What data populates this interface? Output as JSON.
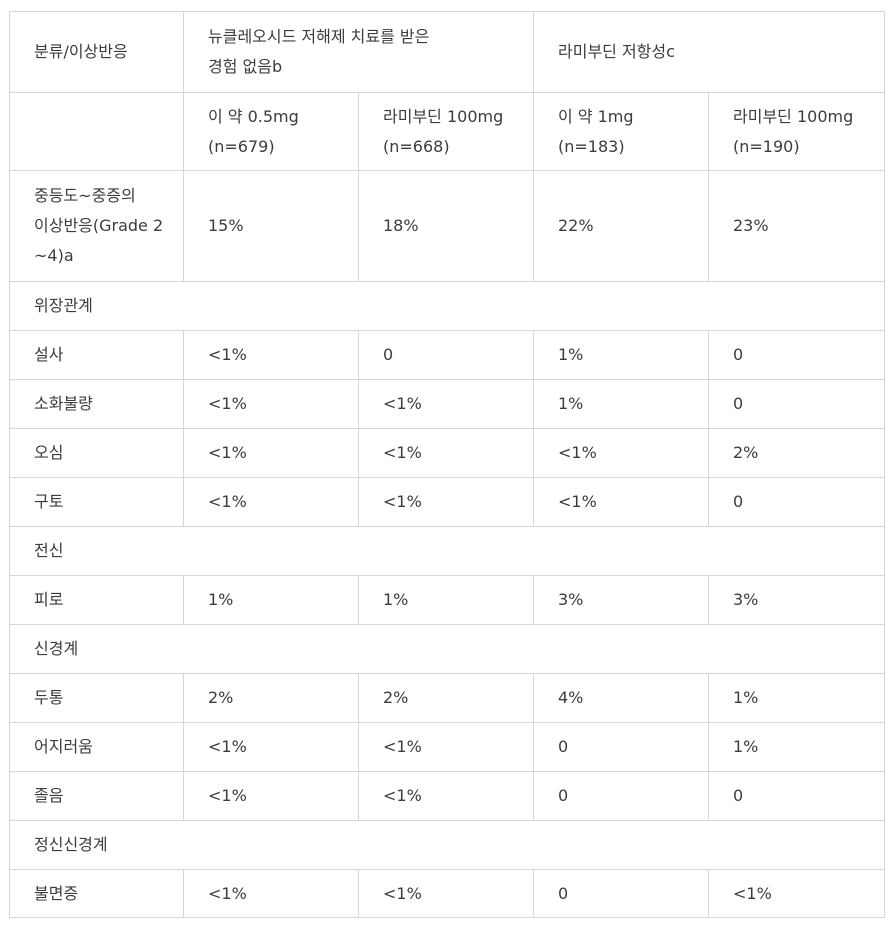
{
  "header": {
    "category_label": "분류/이상반응",
    "group1_line1": "뉴클레오시드 저해제 치료를 받은",
    "group1_line2": "경험 없음b",
    "group2": "라미부딘 저항성c"
  },
  "subheader": {
    "col1_line1": "이 약 0.5mg",
    "col1_line2": "(n=679)",
    "col2_line1": "라미부딘 100mg",
    "col2_line2": "(n=668)",
    "col3_line1": "이 약 1mg",
    "col3_line2": "(n=183)",
    "col4_line1": "라미부딘 100mg",
    "col4_line2": "(n=190)"
  },
  "grade_row": {
    "label_line1": "중등도~중증의",
    "label_line2": "이상반응(Grade 2",
    "label_line3": "~4)a",
    "values": [
      "15%",
      "18%",
      "22%",
      "23%"
    ]
  },
  "rows": [
    {
      "section": "위장관계"
    },
    {
      "label": "설사",
      "values": [
        "<1%",
        "0",
        "1%",
        "0"
      ]
    },
    {
      "label": "소화불량",
      "values": [
        "<1%",
        "<1%",
        "1%",
        "0"
      ]
    },
    {
      "label": "오심",
      "values": [
        "<1%",
        "<1%",
        "<1%",
        "2%"
      ]
    },
    {
      "label": "구토",
      "values": [
        "<1%",
        "<1%",
        "<1%",
        "0"
      ]
    },
    {
      "section": "전신"
    },
    {
      "label": "피로",
      "values": [
        "1%",
        "1%",
        "3%",
        "3%"
      ]
    },
    {
      "section": "신경계"
    },
    {
      "label": "두통",
      "values": [
        "2%",
        "2%",
        "4%",
        "1%"
      ]
    },
    {
      "label": "어지러움",
      "values": [
        "<1%",
        "<1%",
        "0",
        "1%"
      ]
    },
    {
      "label": "졸음",
      "values": [
        "<1%",
        "<1%",
        "0",
        "0"
      ]
    },
    {
      "section": "정신신경계"
    },
    {
      "label": "불면증",
      "values": [
        "<1%",
        "<1%",
        "0",
        "<1%"
      ]
    }
  ]
}
